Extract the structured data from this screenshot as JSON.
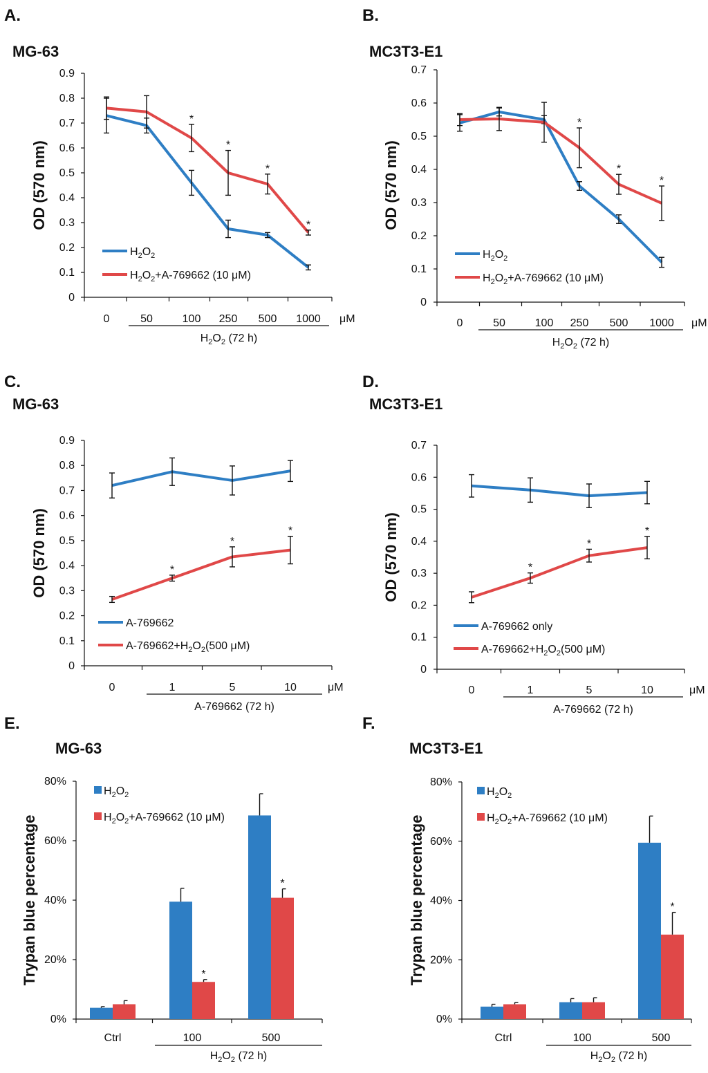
{
  "colors": {
    "blue": "#2E7EC4",
    "red": "#E04848",
    "axis": "#111111"
  },
  "chart_data": [
    {
      "id": "A",
      "panel": "A.",
      "title": "MG-63",
      "type": "line",
      "ylabel": "OD (570 nm)",
      "ylim": [
        0,
        0.9
      ],
      "yticks": [
        "0",
        "0.1",
        "0.2",
        "0.3",
        "0.4",
        "0.5",
        "0.6",
        "0.7",
        "0.8",
        "0.9"
      ],
      "categories": [
        "0",
        "50",
        "100",
        "250",
        "500",
        "1000"
      ],
      "unit": "μM",
      "xgroup": {
        "text": "H2O2 (72 h)",
        "parts": [
          [
            "H",
            "n"
          ],
          [
            "2",
            "s"
          ],
          [
            "O",
            "n"
          ],
          [
            "2",
            "s"
          ],
          [
            " (72 h)",
            "n"
          ]
        ]
      },
      "series": [
        {
          "name": "H2O2",
          "color": "blue",
          "values": [
            0.73,
            0.69,
            0.46,
            0.275,
            0.25,
            0.12
          ],
          "errors": [
            0.07,
            0.03,
            0.05,
            0.035,
            0.01,
            0.01
          ],
          "stars": [
            false,
            false,
            false,
            false,
            false,
            false
          ],
          "legend": [
            [
              "H",
              "n"
            ],
            [
              "2",
              "s"
            ],
            [
              "O",
              "n"
            ],
            [
              "2",
              "s"
            ]
          ]
        },
        {
          "name": "H2O2+A-769662 (10 μM)",
          "color": "red",
          "values": [
            0.76,
            0.745,
            0.64,
            0.5,
            0.455,
            0.26
          ],
          "errors": [
            0.045,
            0.065,
            0.055,
            0.09,
            0.04,
            0.01
          ],
          "stars": [
            false,
            false,
            true,
            true,
            true,
            true
          ],
          "legend": [
            [
              "H",
              "n"
            ],
            [
              "2",
              "s"
            ],
            [
              "O",
              "n"
            ],
            [
              "2",
              "s"
            ],
            [
              "+A-769662 (10 μM)",
              "n"
            ]
          ]
        }
      ]
    },
    {
      "id": "B",
      "panel": "B.",
      "title": "MC3T3-E1",
      "type": "line",
      "ylabel": "OD (570 nm)",
      "ylim": [
        0,
        0.7
      ],
      "yticks": [
        "0",
        "0.1",
        "0.2",
        "0.3",
        "0.4",
        "0.5",
        "0.6",
        "0.7"
      ],
      "categories": [
        "0",
        "50",
        "100",
        "250",
        "500",
        "1000"
      ],
      "unit": "μM",
      "xgroup": {
        "text": "H2O2 (72 h)",
        "parts": [
          [
            "H",
            "n"
          ],
          [
            "2",
            "s"
          ],
          [
            "O",
            "n"
          ],
          [
            "2",
            "s"
          ],
          [
            " (72 h)",
            "n"
          ]
        ]
      },
      "series": [
        {
          "name": "H2O2",
          "color": "blue",
          "values": [
            0.54,
            0.573,
            0.55,
            0.35,
            0.25,
            0.12
          ],
          "errors": [
            0.025,
            0.012,
            0.012,
            0.013,
            0.013,
            0.015
          ],
          "stars": [
            false,
            false,
            false,
            false,
            false,
            false
          ],
          "legend": [
            [
              "H",
              "n"
            ],
            [
              "2",
              "s"
            ],
            [
              "O",
              "n"
            ],
            [
              "2",
              "s"
            ]
          ]
        },
        {
          "name": "H2O2+A-769662 (10 μM)",
          "color": "red",
          "values": [
            0.55,
            0.552,
            0.542,
            0.465,
            0.355,
            0.298
          ],
          "errors": [
            0.018,
            0.035,
            0.06,
            0.06,
            0.03,
            0.052
          ],
          "stars": [
            false,
            false,
            false,
            true,
            true,
            true
          ],
          "legend": [
            [
              "H",
              "n"
            ],
            [
              "2",
              "s"
            ],
            [
              "O",
              "n"
            ],
            [
              "2",
              "s"
            ],
            [
              "+A-769662 (10 μM)",
              "n"
            ]
          ]
        }
      ]
    },
    {
      "id": "C",
      "panel": "C.",
      "title": "MG-63",
      "type": "line",
      "ylabel": "OD (570 nm)",
      "ylim": [
        0,
        0.9
      ],
      "yticks": [
        "0",
        "0.1",
        "0.2",
        "0.3",
        "0.4",
        "0.5",
        "0.6",
        "0.7",
        "0.8",
        "0.9"
      ],
      "categories": [
        "0",
        "1",
        "5",
        "10"
      ],
      "unit": "μM",
      "xgroup": {
        "text": "A-769662 (72 h)",
        "parts": [
          [
            "A-769662 (72 h)",
            "n"
          ]
        ]
      },
      "series": [
        {
          "name": "A-769662",
          "color": "blue",
          "values": [
            0.72,
            0.775,
            0.74,
            0.778
          ],
          "errors": [
            0.05,
            0.055,
            0.058,
            0.042
          ],
          "stars": [
            false,
            false,
            false,
            false
          ],
          "legend": [
            [
              "A-769662",
              "n"
            ]
          ]
        },
        {
          "name": "A-769662+H2O2(500 μM)",
          "color": "red",
          "values": [
            0.265,
            0.35,
            0.435,
            0.462
          ],
          "errors": [
            0.012,
            0.012,
            0.04,
            0.055
          ],
          "stars": [
            false,
            true,
            true,
            true
          ],
          "legend": [
            [
              "A-769662+H",
              "n"
            ],
            [
              "2",
              "s"
            ],
            [
              "O",
              "n"
            ],
            [
              "2",
              "s"
            ],
            [
              "(500 μM)",
              "n"
            ]
          ]
        }
      ]
    },
    {
      "id": "D",
      "panel": "D.",
      "title": "MC3T3-E1",
      "type": "line",
      "ylabel": "OD (570 nm)",
      "ylim": [
        0,
        0.7
      ],
      "yticks": [
        "0",
        "0.1",
        "0.2",
        "0.3",
        "0.4",
        "0.5",
        "0.6",
        "0.7"
      ],
      "categories": [
        "0",
        "1",
        "5",
        "10"
      ],
      "unit": "μM",
      "xgroup": {
        "text": "A-769662 (72 h)",
        "parts": [
          [
            "A-769662 (72 h)",
            "n"
          ]
        ]
      },
      "series": [
        {
          "name": "A-769662 only",
          "color": "blue",
          "values": [
            0.573,
            0.56,
            0.542,
            0.552
          ],
          "errors": [
            0.035,
            0.038,
            0.037,
            0.035
          ],
          "stars": [
            false,
            false,
            false,
            false
          ],
          "legend": [
            [
              "A-769662 only",
              "n"
            ]
          ]
        },
        {
          "name": "A-769662+H2O2(500 μM)",
          "color": "red",
          "values": [
            0.225,
            0.285,
            0.355,
            0.38
          ],
          "errors": [
            0.017,
            0.016,
            0.02,
            0.035
          ],
          "stars": [
            false,
            true,
            true,
            true
          ],
          "legend": [
            [
              "A-769662+H",
              "n"
            ],
            [
              "2",
              "s"
            ],
            [
              "O",
              "n"
            ],
            [
              "2",
              "s"
            ],
            [
              "(500 μM)",
              "n"
            ]
          ]
        }
      ]
    },
    {
      "id": "E",
      "panel": "E.",
      "title": "MG-63",
      "type": "bar",
      "ylabel": "Trypan blue percentage",
      "ylim": [
        0,
        80
      ],
      "yticks": [
        "0%",
        "20%",
        "40%",
        "60%",
        "80%"
      ],
      "categories": [
        "Ctrl",
        "100",
        "500"
      ],
      "xgroup": {
        "text": "H2O2 (72 h)",
        "parts": [
          [
            "H",
            "n"
          ],
          [
            "2",
            "s"
          ],
          [
            "O",
            "n"
          ],
          [
            "2",
            "s"
          ],
          [
            " (72 h)",
            "n"
          ]
        ]
      },
      "series": [
        {
          "name": "H2O2",
          "color": "blue",
          "values": [
            3.8,
            39.5,
            68.5
          ],
          "errors": [
            0.4,
            4.5,
            7.3
          ],
          "stars": [
            false,
            false,
            false
          ],
          "legend": [
            [
              "H",
              "n"
            ],
            [
              "2",
              "s"
            ],
            [
              "O",
              "n"
            ],
            [
              "2",
              "s"
            ]
          ]
        },
        {
          "name": "H2O2+A-769662 (10 μM)",
          "color": "red",
          "values": [
            5.0,
            12.5,
            40.8
          ],
          "errors": [
            1.2,
            0.8,
            3.0
          ],
          "stars": [
            false,
            true,
            true
          ],
          "legend": [
            [
              "H",
              "n"
            ],
            [
              "2",
              "s"
            ],
            [
              "O",
              "n"
            ],
            [
              "2",
              "s"
            ],
            [
              "+A-769662 (10 μM)",
              "n"
            ]
          ]
        }
      ]
    },
    {
      "id": "F",
      "panel": "F.",
      "title": "MC3T3-E1",
      "type": "bar",
      "ylabel": "Trypan blue percentage",
      "ylim": [
        0,
        80
      ],
      "yticks": [
        "0%",
        "20%",
        "40%",
        "60%",
        "80%"
      ],
      "categories": [
        "Ctrl",
        "100",
        "500"
      ],
      "xgroup": {
        "text": "H2O2 (72 h)",
        "parts": [
          [
            "H",
            "n"
          ],
          [
            "2",
            "s"
          ],
          [
            "O",
            "n"
          ],
          [
            "2",
            "s"
          ],
          [
            " (72 h)",
            "n"
          ]
        ]
      },
      "series": [
        {
          "name": "H2O2",
          "color": "blue",
          "values": [
            4.2,
            5.7,
            59.5
          ],
          "errors": [
            0.8,
            1.2,
            9.0
          ],
          "stars": [
            false,
            false,
            false
          ],
          "legend": [
            [
              "H",
              "n"
            ],
            [
              "2",
              "s"
            ],
            [
              "O",
              "n"
            ],
            [
              "2",
              "s"
            ]
          ]
        },
        {
          "name": "H2O2+A-769662 (10 μM)",
          "color": "red",
          "values": [
            5.0,
            5.7,
            28.5
          ],
          "errors": [
            0.6,
            1.5,
            7.5
          ],
          "stars": [
            false,
            false,
            true
          ],
          "legend": [
            [
              "H",
              "n"
            ],
            [
              "2",
              "s"
            ],
            [
              "O",
              "n"
            ],
            [
              "2",
              "s"
            ],
            [
              "+A-769662 (10 μM)",
              "n"
            ]
          ]
        }
      ]
    }
  ]
}
